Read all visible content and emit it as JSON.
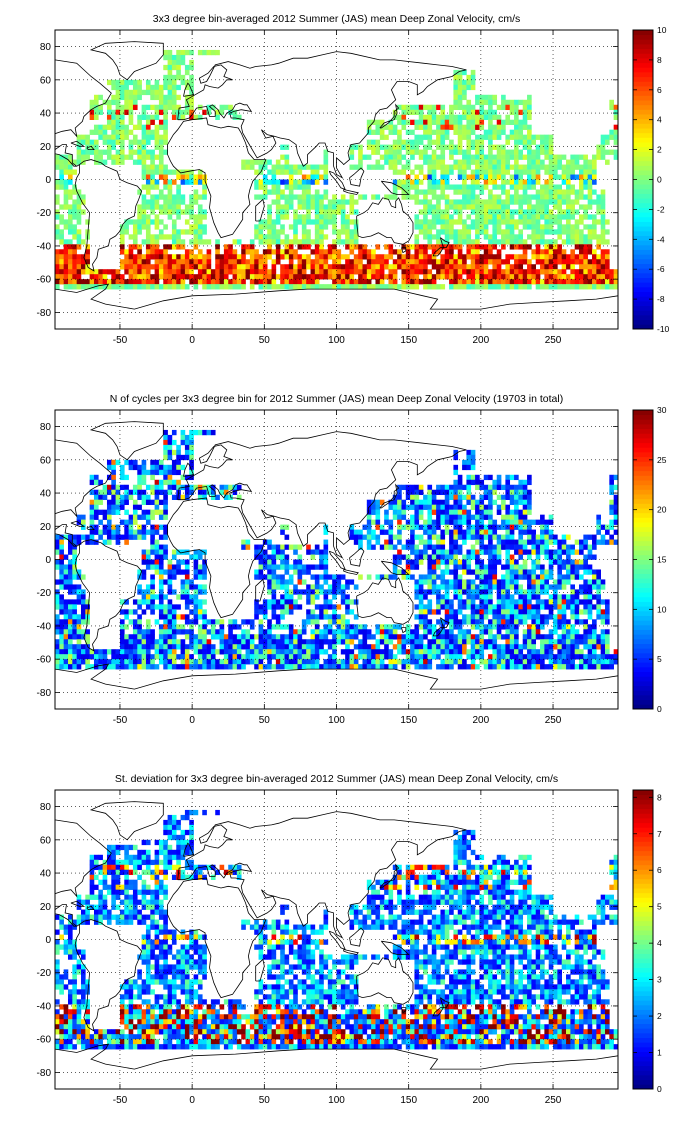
{
  "chart_data": [
    {
      "type": "heatmap",
      "title": "3x3 degree bin-averaged 2012 Summer (JAS) mean Deep Zonal Velocity, cm/s",
      "xlabel": "",
      "ylabel": "",
      "xlim": [
        -95,
        295
      ],
      "ylim": [
        -90,
        90
      ],
      "x_ticks": [
        "-50",
        "0",
        "50",
        "100",
        "150",
        "200",
        "250"
      ],
      "y_ticks": [
        "80",
        "60",
        "40",
        "20",
        "0",
        "-20",
        "-40",
        "-60",
        "-80"
      ],
      "colorbar": {
        "min": -10,
        "max": 10,
        "ticks": [
          "10",
          "8",
          "6",
          "4",
          "2",
          "0",
          "-2",
          "-4",
          "-6",
          "-8",
          "-10"
        ]
      },
      "grid": true,
      "colormap": "jet",
      "bin_size_deg": 3,
      "field": "velocity"
    },
    {
      "type": "heatmap",
      "title": "N of cycles per 3x3 degree bin for 2012 Summer (JAS) mean Deep Zonal Velocity (19703 in total)",
      "xlabel": "",
      "ylabel": "",
      "xlim": [
        -95,
        295
      ],
      "ylim": [
        -90,
        90
      ],
      "x_ticks": [
        "-50",
        "0",
        "50",
        "100",
        "150",
        "200",
        "250"
      ],
      "y_ticks": [
        "80",
        "60",
        "40",
        "20",
        "0",
        "-20",
        "-40",
        "-60",
        "-80"
      ],
      "colorbar": {
        "min": 0,
        "max": 30,
        "ticks": [
          "30",
          "25",
          "20",
          "15",
          "10",
          "5",
          "0"
        ]
      },
      "grid": true,
      "colormap": "jet",
      "bin_size_deg": 3,
      "field": "count"
    },
    {
      "type": "heatmap",
      "title": "St. deviation for 3x3 degree bin-averaged 2012 Summer (JAS) mean Deep Zonal Velocity, cm/s",
      "xlabel": "",
      "ylabel": "",
      "xlim": [
        -95,
        295
      ],
      "ylim": [
        -90,
        90
      ],
      "x_ticks": [
        "-50",
        "0",
        "50",
        "100",
        "150",
        "200",
        "250"
      ],
      "y_ticks": [
        "80",
        "60",
        "40",
        "20",
        "0",
        "-20",
        "-40",
        "-60",
        "-80"
      ],
      "colorbar": {
        "min": 0,
        "max": 8.2,
        "ticks": [
          "8",
          "7",
          "6",
          "5",
          "4",
          "3",
          "2",
          "1",
          "0"
        ]
      },
      "grid": true,
      "colormap": "jet",
      "bin_size_deg": 3,
      "field": "std"
    }
  ]
}
